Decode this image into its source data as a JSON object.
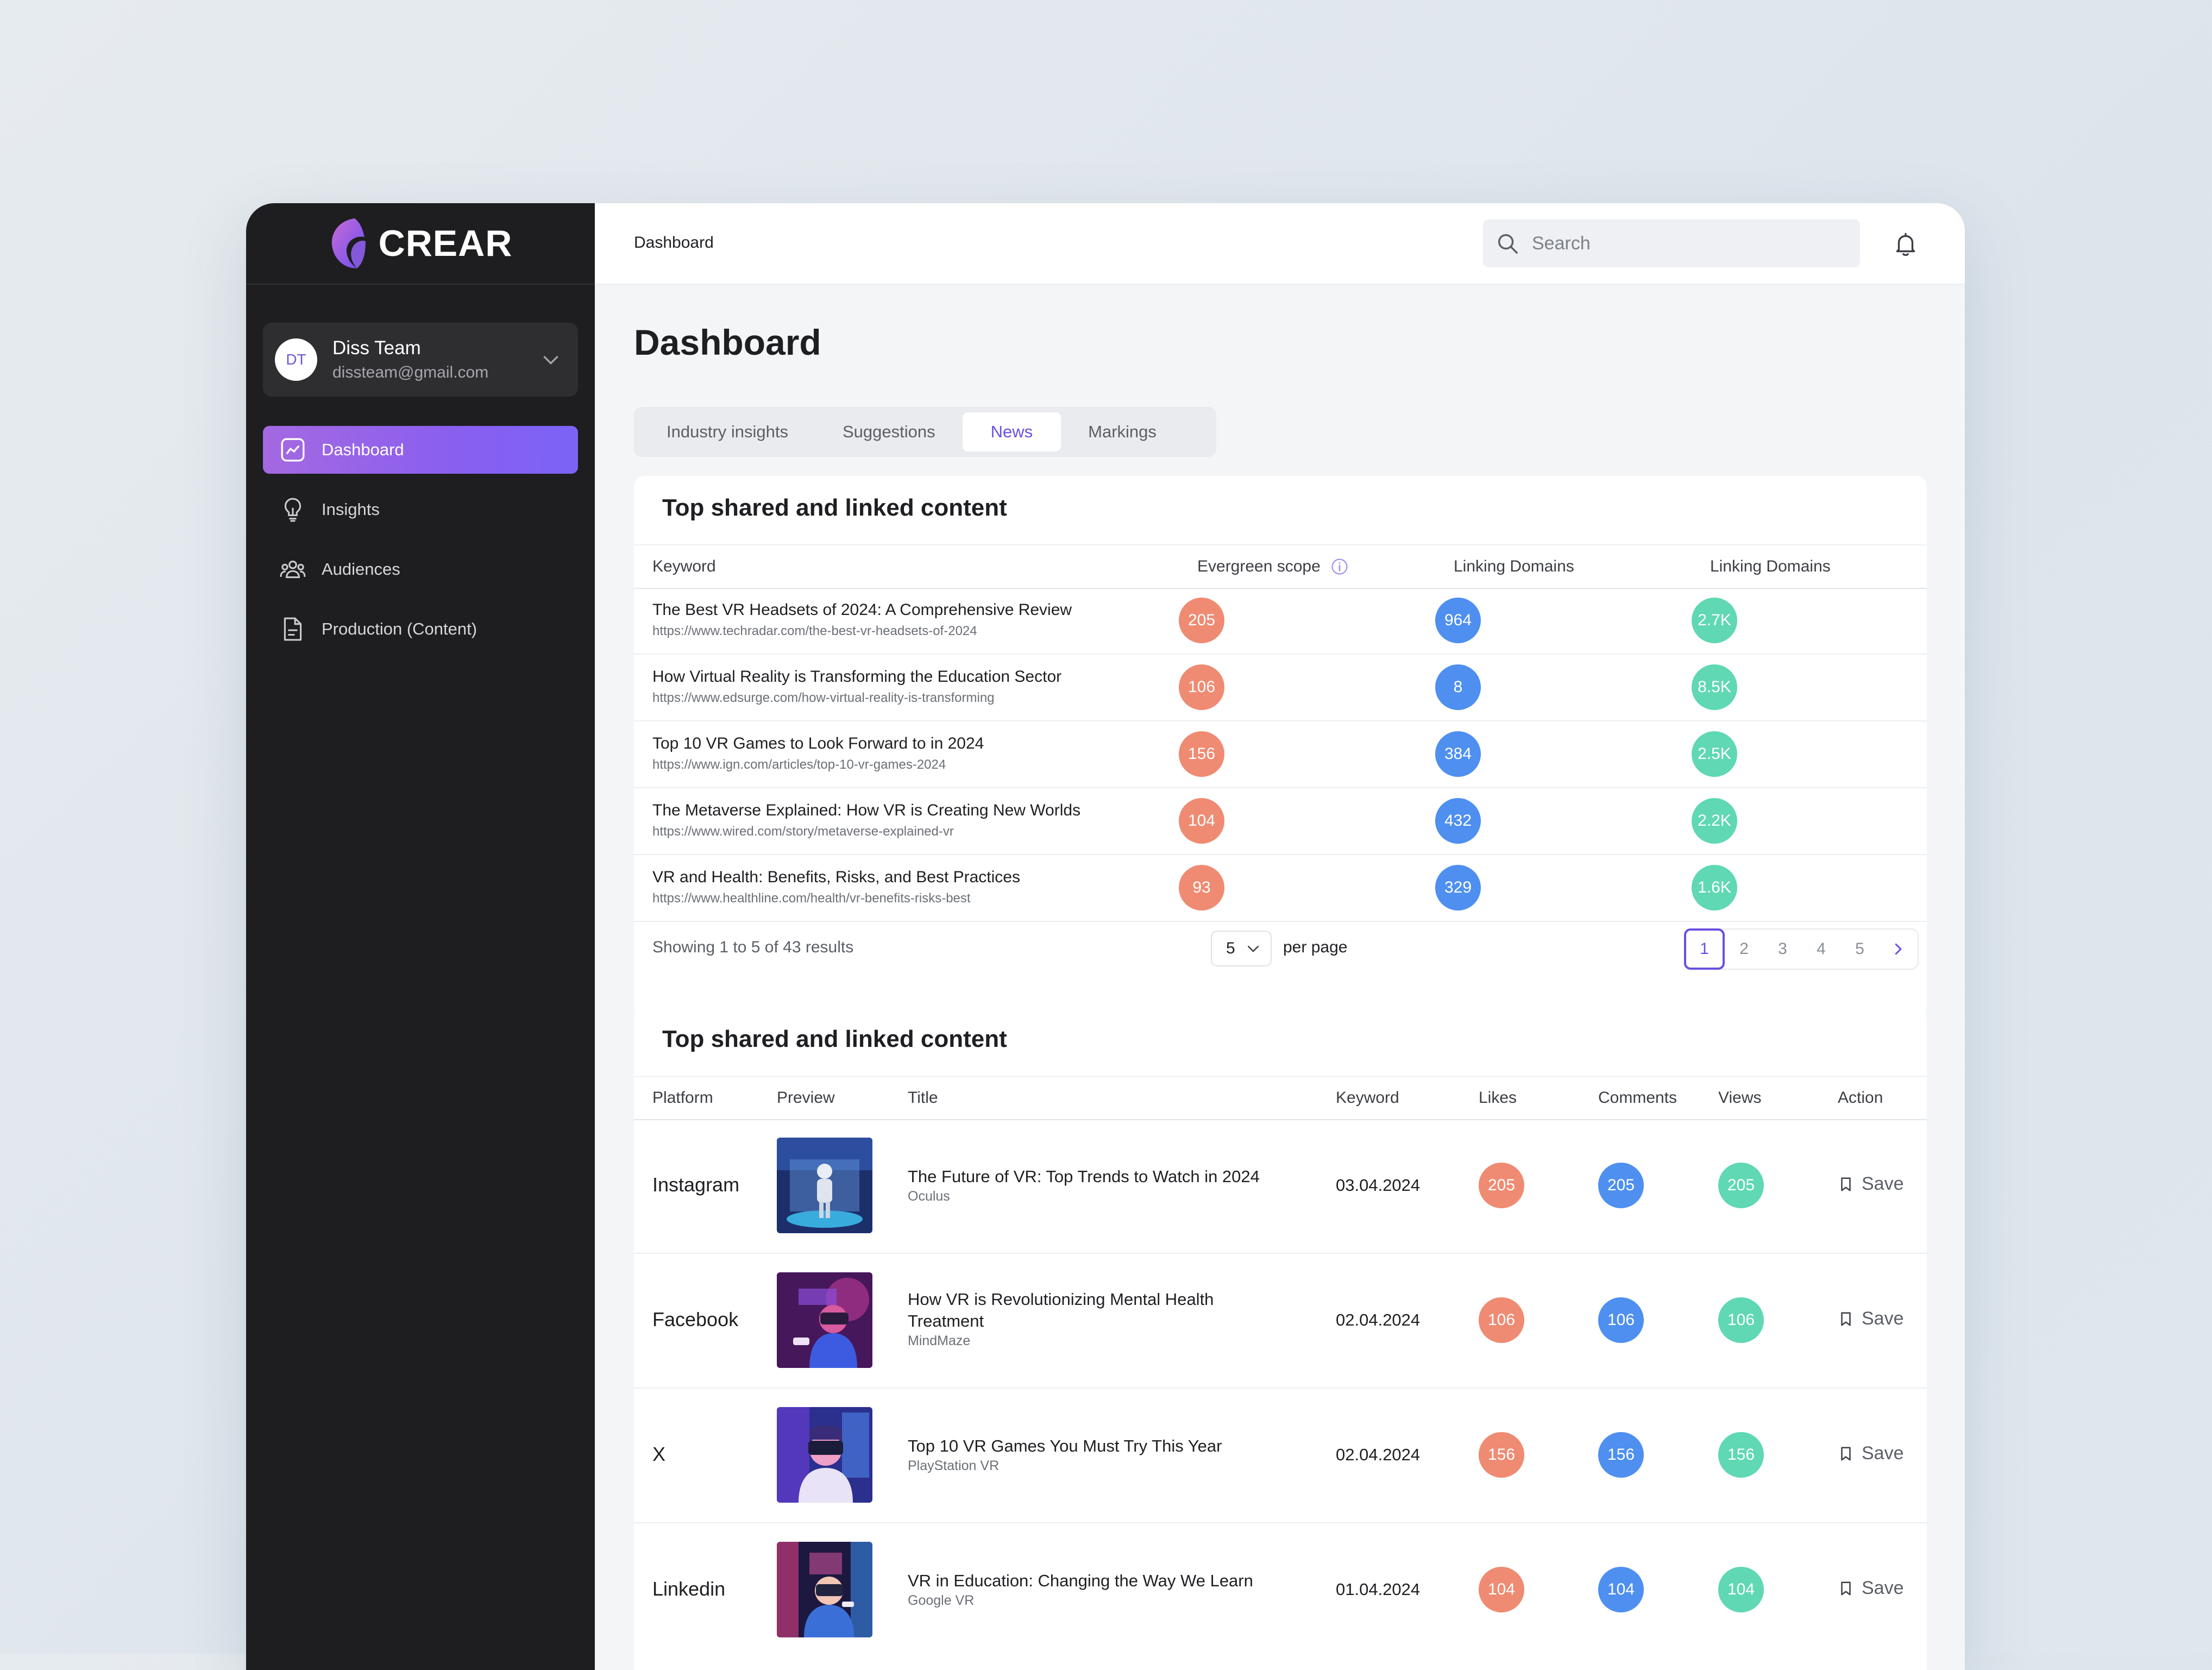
{
  "brand": {
    "name": "CREAR"
  },
  "account": {
    "initials": "DT",
    "name": "Diss Team",
    "email": "dissteam@gmail.com"
  },
  "nav": [
    {
      "label": "Dashboard",
      "icon": "chart-line-icon",
      "active": true
    },
    {
      "label": "Insights",
      "icon": "lightbulb-icon",
      "active": false
    },
    {
      "label": "Audiences",
      "icon": "people-icon",
      "active": false
    },
    {
      "label": "Production (Content)",
      "icon": "document-icon",
      "active": false
    }
  ],
  "topbar": {
    "breadcrumb": "Dashboard",
    "search_placeholder": "Search"
  },
  "page": {
    "title": "Dashboard"
  },
  "tabs": [
    {
      "label": "Industry insights",
      "active": false
    },
    {
      "label": "Suggestions",
      "active": false
    },
    {
      "label": "News",
      "active": true
    },
    {
      "label": "Markings",
      "active": false
    }
  ],
  "colors": {
    "accent": "#6b4fe0",
    "red": "#ef8b72",
    "blue": "#4e8ff0",
    "green": "#5fd8b3",
    "sidebar": "#1e1e20"
  },
  "table1": {
    "title": "Top shared and linked content",
    "headers": {
      "keyword": "Keyword",
      "evergreen": "Evergreen scope",
      "linking1": "Linking Domains",
      "linking2": "Linking Domains"
    },
    "rows": [
      {
        "title": "The Best VR Headsets of 2024: A Comprehensive Review",
        "url": "https://www.techradar.com/the-best-vr-headsets-of-2024",
        "evergreen": "205",
        "linking1": "964",
        "linking2": "2.7K"
      },
      {
        "title": "How Virtual Reality is Transforming the Education Sector",
        "url": "https://www.edsurge.com/how-virtual-reality-is-transforming",
        "evergreen": "106",
        "linking1": "8",
        "linking2": "8.5K"
      },
      {
        "title": "Top 10 VR Games to Look Forward to in 2024",
        "url": "https://www.ign.com/articles/top-10-vr-games-2024",
        "evergreen": "156",
        "linking1": "384",
        "linking2": "2.5K"
      },
      {
        "title": "The Metaverse Explained: How VR is Creating New Worlds",
        "url": "https://www.wired.com/story/metaverse-explained-vr",
        "evergreen": "104",
        "linking1": "432",
        "linking2": "2.2K"
      },
      {
        "title": "VR and Health: Benefits, Risks, and Best Practices",
        "url": "https://www.healthline.com/health/vr-benefits-risks-best",
        "evergreen": "93",
        "linking1": "329",
        "linking2": "1.6K"
      }
    ],
    "footer": {
      "showing": "Showing 1 to 5 of 43 results",
      "per_page_value": "5",
      "per_page_label": "per page",
      "pages": [
        "1",
        "2",
        "3",
        "4",
        "5"
      ],
      "current_page": "1"
    }
  },
  "table2": {
    "title": "Top shared and linked content",
    "headers": {
      "platform": "Platform",
      "preview": "Preview",
      "title": "Title",
      "keyword": "Keyword",
      "likes": "Likes",
      "comments": "Comments",
      "views": "Views",
      "action": "Action"
    },
    "rows": [
      {
        "platform": "Instagram",
        "title": "The Future of VR: Top Trends to Watch in 2024",
        "source": "Oculus",
        "keyword": "03.04.2024",
        "likes": "205",
        "comments": "205",
        "views": "205",
        "action": "Save"
      },
      {
        "platform": "Facebook",
        "title": "How VR is Revolutionizing Mental Health Treatment",
        "source": "MindMaze",
        "keyword": "02.04.2024",
        "likes": "106",
        "comments": "106",
        "views": "106",
        "action": "Save"
      },
      {
        "platform": "X",
        "title": "Top 10 VR Games You Must Try This Year",
        "source": "PlayStation VR",
        "keyword": "02.04.2024",
        "likes": "156",
        "comments": "156",
        "views": "156",
        "action": "Save"
      },
      {
        "platform": "Linkedin",
        "title": "VR in Education: Changing the Way We Learn",
        "source": "Google VR",
        "keyword": "01.04.2024",
        "likes": "104",
        "comments": "104",
        "views": "104",
        "action": "Save"
      }
    ]
  }
}
